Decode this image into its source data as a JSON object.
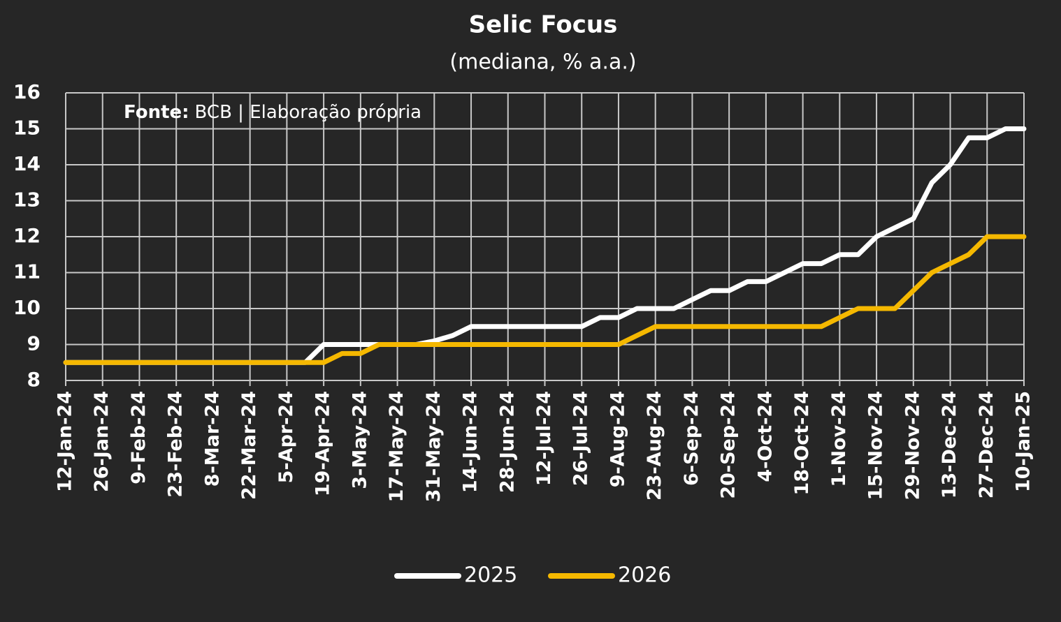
{
  "chart_data": {
    "type": "line",
    "title": "Selic Focus",
    "subtitle": "(mediana, % a.a.)",
    "source_label": "Fonte:",
    "source_text": "BCB | Elaboração própria",
    "categories": [
      "12-Jan-24",
      null,
      "26-Jan-24",
      null,
      "9-Feb-24",
      null,
      "23-Feb-24",
      null,
      "8-Mar-24",
      null,
      "22-Mar-24",
      null,
      "5-Apr-24",
      null,
      "19-Apr-24",
      null,
      "3-May-24",
      null,
      "17-May-24",
      null,
      "31-May-24",
      null,
      "14-Jun-24",
      null,
      "28-Jun-24",
      null,
      "12-Jul-24",
      null,
      "26-Jul-24",
      null,
      "9-Aug-24",
      null,
      "23-Aug-24",
      null,
      "6-Sep-24",
      null,
      "20-Sep-24",
      null,
      "4-Oct-24",
      null,
      "18-Oct-24",
      null,
      "1-Nov-24",
      null,
      "15-Nov-24",
      null,
      "29-Nov-24",
      null,
      "13-Dec-24",
      null,
      "27-Dec-24",
      null,
      "10-Jan-25"
    ],
    "series": [
      {
        "name": "2025",
        "color": "#ffffff",
        "values": [
          8.5,
          8.5,
          8.5,
          8.5,
          8.5,
          8.5,
          8.5,
          8.5,
          8.5,
          8.5,
          8.5,
          8.5,
          8.5,
          8.5,
          9,
          9,
          9,
          9,
          9,
          9,
          9.1,
          9.25,
          9.5,
          9.5,
          9.5,
          9.5,
          9.5,
          9.5,
          9.5,
          9.75,
          9.75,
          10,
          10,
          10,
          10.25,
          10.5,
          10.5,
          10.75,
          10.75,
          11,
          11.25,
          11.25,
          11.5,
          11.5,
          12,
          12.25,
          12.5,
          13.5,
          14,
          14.75,
          14.75,
          15,
          15
        ]
      },
      {
        "name": "2026",
        "color": "#f5b800",
        "values": [
          8.5,
          8.5,
          8.5,
          8.5,
          8.5,
          8.5,
          8.5,
          8.5,
          8.5,
          8.5,
          8.5,
          8.5,
          8.5,
          8.5,
          8.5,
          8.75,
          8.75,
          9,
          9,
          9,
          9,
          9,
          9,
          9,
          9,
          9,
          9,
          9,
          9,
          9,
          9,
          9.25,
          9.5,
          9.5,
          9.5,
          9.5,
          9.5,
          9.5,
          9.5,
          9.5,
          9.5,
          9.5,
          9.75,
          10,
          10,
          10,
          10.5,
          11,
          11.25,
          11.5,
          12,
          12,
          12
        ]
      }
    ],
    "ylim": [
      8,
      16
    ],
    "yticks": [
      8,
      9,
      10,
      11,
      12,
      13,
      14,
      15,
      16
    ],
    "grid": true,
    "legend": "bottom"
  }
}
